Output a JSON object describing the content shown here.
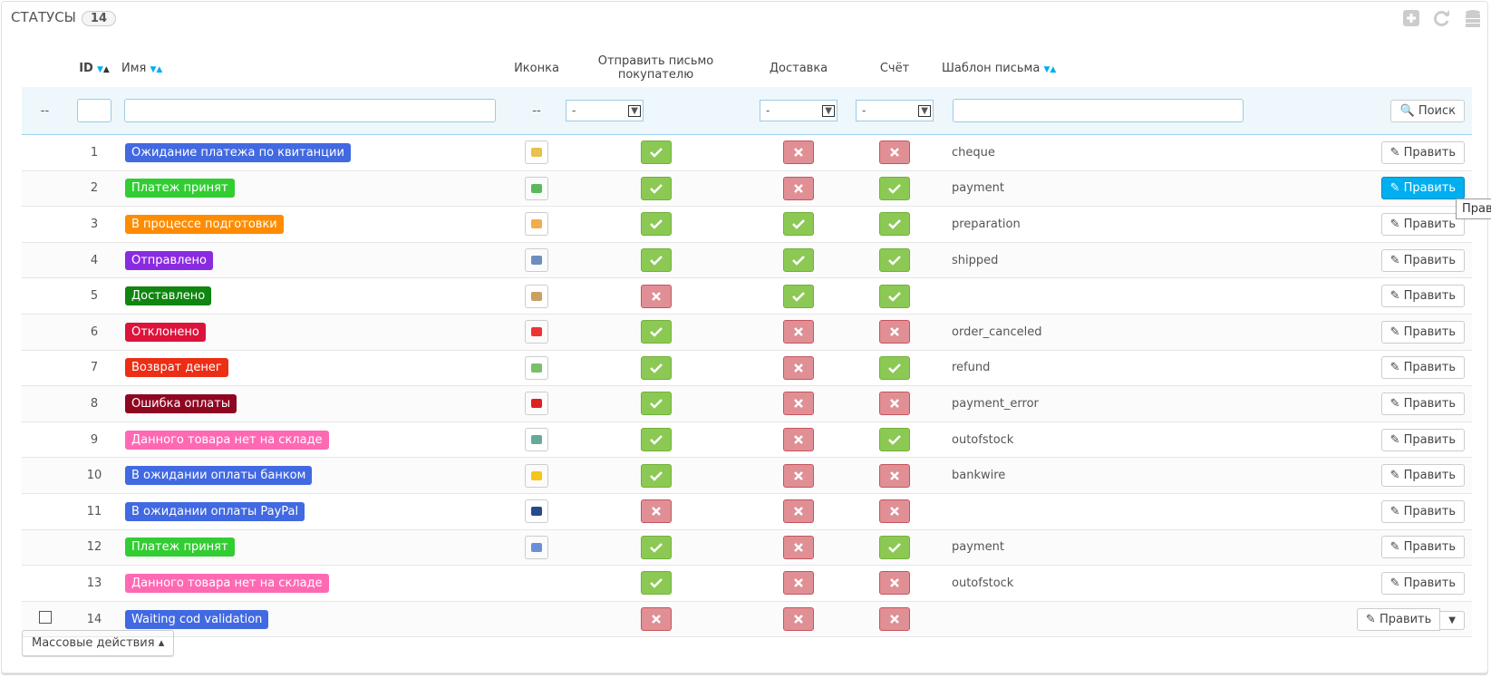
{
  "header": {
    "title": "СТАТУСЫ",
    "count": "14"
  },
  "columns": {
    "id": "ID",
    "name": "Имя",
    "icon": "Иконка",
    "send_email": "Отправить письмо покупателю",
    "delivery": "Доставка",
    "invoice": "Счёт",
    "template": "Шаблон письма"
  },
  "filters": {
    "select_check": "--",
    "icon": "--",
    "send_email": "-",
    "delivery": "-",
    "invoice": "-",
    "search": "Поиск"
  },
  "edit_label": "Править",
  "tooltip": "Прав",
  "bulk_actions": "Массовые действия",
  "rows": [
    {
      "id": "1",
      "name": "Ожидание платежа по квитанции",
      "color": "#4169e1",
      "icon": true,
      "send_email": true,
      "delivery": false,
      "invoice": false,
      "template": "cheque"
    },
    {
      "id": "2",
      "name": "Платеж принят",
      "color": "#32cd32",
      "icon": true,
      "send_email": true,
      "delivery": false,
      "invoice": true,
      "template": "payment",
      "hovered": true
    },
    {
      "id": "3",
      "name": "В процессе подготовки",
      "color": "#ff8c00",
      "icon": true,
      "send_email": true,
      "delivery": true,
      "invoice": true,
      "template": "preparation"
    },
    {
      "id": "4",
      "name": "Отправлено",
      "color": "#8a2be2",
      "icon": true,
      "send_email": true,
      "delivery": true,
      "invoice": true,
      "template": "shipped"
    },
    {
      "id": "5",
      "name": "Доставлено",
      "color": "#108510",
      "icon": true,
      "send_email": false,
      "delivery": true,
      "invoice": true,
      "template": ""
    },
    {
      "id": "6",
      "name": "Отклонено",
      "color": "#dc143c",
      "icon": true,
      "send_email": true,
      "delivery": false,
      "invoice": false,
      "template": "order_canceled"
    },
    {
      "id": "7",
      "name": "Возврат денег",
      "color": "#ec2e15",
      "icon": true,
      "send_email": true,
      "delivery": false,
      "invoice": true,
      "template": "refund"
    },
    {
      "id": "8",
      "name": "Ошибка оплаты",
      "color": "#8f0621",
      "icon": true,
      "send_email": true,
      "delivery": false,
      "invoice": false,
      "template": "payment_error"
    },
    {
      "id": "9",
      "name": "Данного товара нет на складе",
      "color": "#ff69b4",
      "icon": true,
      "send_email": true,
      "delivery": false,
      "invoice": true,
      "template": "outofstock"
    },
    {
      "id": "10",
      "name": "В ожидании оплаты банком",
      "color": "#4169e1",
      "icon": true,
      "send_email": true,
      "delivery": false,
      "invoice": false,
      "template": "bankwire"
    },
    {
      "id": "11",
      "name": "В ожидании оплаты PayPal",
      "color": "#4169e1",
      "icon": true,
      "send_email": false,
      "delivery": false,
      "invoice": false,
      "template": ""
    },
    {
      "id": "12",
      "name": "Платеж принят",
      "color": "#32cd32",
      "icon": true,
      "send_email": true,
      "delivery": false,
      "invoice": true,
      "template": "payment"
    },
    {
      "id": "13",
      "name": "Данного товара нет на складе",
      "color": "#ff69b4",
      "icon": false,
      "send_email": true,
      "delivery": false,
      "invoice": false,
      "template": "outofstock"
    },
    {
      "id": "14",
      "name": "Waiting cod validation",
      "color": "#4169e1",
      "icon": false,
      "send_email": false,
      "delivery": false,
      "invoice": false,
      "template": "",
      "checkbox": true,
      "split": true
    }
  ]
}
